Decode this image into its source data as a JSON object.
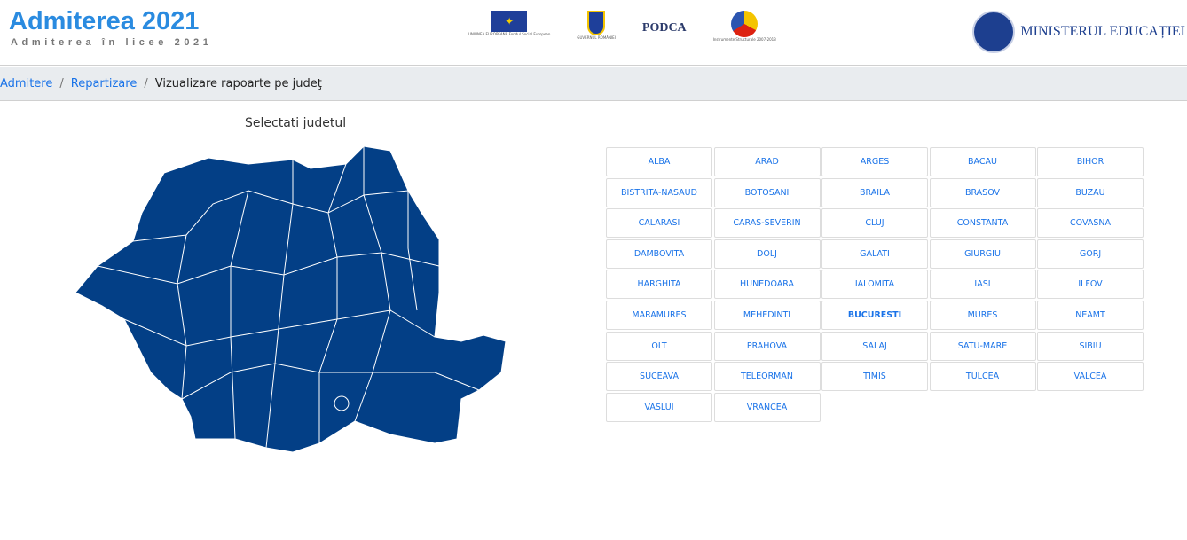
{
  "header": {
    "title": "Admiterea 2021",
    "subtitle": "Admiterea în licee 2021",
    "ministry": "MINISTERUL EDUCAȚIEI",
    "partner_logos": [
      "UNIUNEA EUROPEANĂ Fondul Social European",
      "GUVERNUL ROMÂNIEI",
      "PODCA",
      "Instrumente Structurale 2007-2013"
    ]
  },
  "breadcrumb": {
    "items": [
      "Admitere",
      "Repartizare"
    ],
    "current": "Vizualizare rapoarte pe judeţ"
  },
  "map": {
    "title": "Selectati judetul",
    "fill_color": "#033f86"
  },
  "counties": [
    "ALBA",
    "ARAD",
    "ARGES",
    "BACAU",
    "BIHOR",
    "BISTRITA-NASAUD",
    "BOTOSANI",
    "BRAILA",
    "BRASOV",
    "BUZAU",
    "CALARASI",
    "CARAS-SEVERIN",
    "CLUJ",
    "CONSTANTA",
    "COVASNA",
    "DAMBOVITA",
    "DOLJ",
    "GALATI",
    "GIURGIU",
    "GORJ",
    "HARGHITA",
    "HUNEDOARA",
    "IALOMITA",
    "IASI",
    "ILFOV",
    "MARAMURES",
    "MEHEDINTI",
    "BUCURESTI",
    "MURES",
    "NEAMT",
    "OLT",
    "PRAHOVA",
    "SALAJ",
    "SATU-MARE",
    "SIBIU",
    "SUCEAVA",
    "TELEORMAN",
    "TIMIS",
    "TULCEA",
    "VALCEA",
    "VASLUI",
    "VRANCEA"
  ],
  "selected_county": "BUCURESTI"
}
